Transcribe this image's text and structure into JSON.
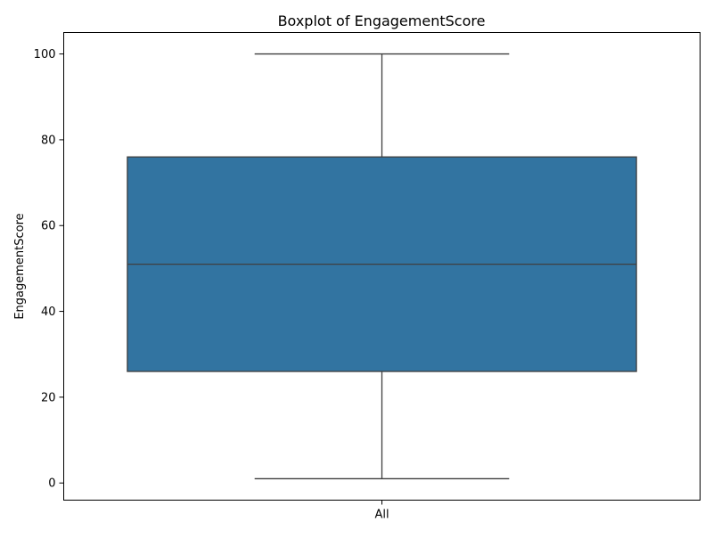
{
  "chart_data": {
    "type": "boxplot",
    "title": "Boxplot of EngagementScore",
    "xlabel": "",
    "ylabel": "EngagementScore",
    "categories": [
      "All"
    ],
    "boxes": [
      {
        "category": "All",
        "whisker_low": 1,
        "q1": 26,
        "median": 51,
        "q3": 76,
        "whisker_high": 100
      }
    ],
    "ylim": [
      -4,
      105
    ],
    "yticks": [
      0,
      20,
      40,
      60,
      80,
      100
    ],
    "grid": false,
    "colors": {
      "box_fill": "#3274a1",
      "line": "#3f3f3f",
      "axis": "#000000"
    }
  }
}
